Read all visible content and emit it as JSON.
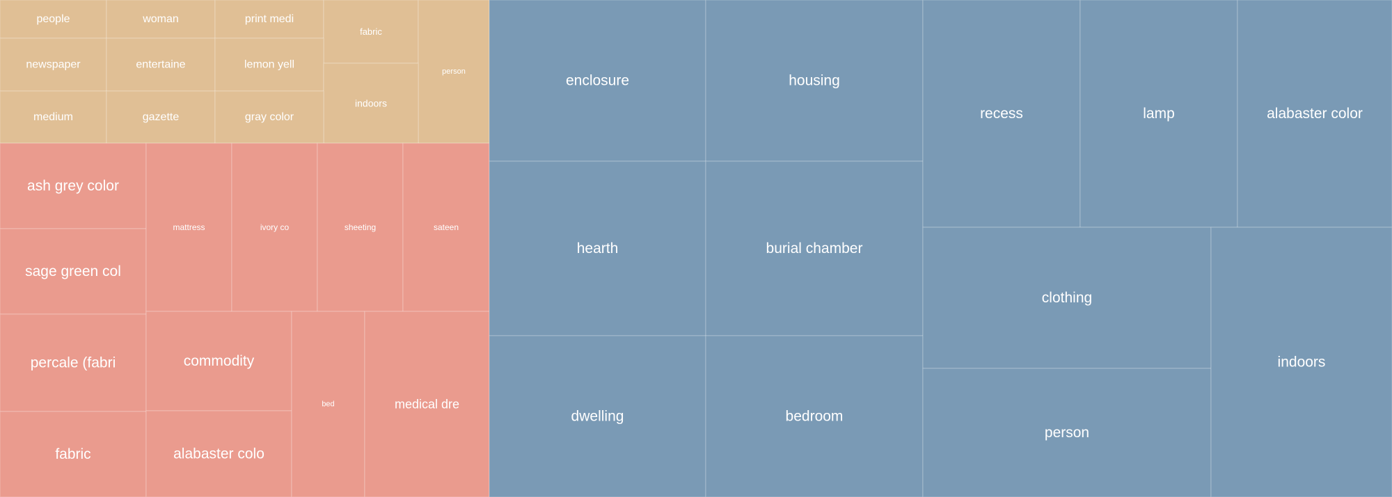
{
  "chart_data": {
    "type": "treemap",
    "groups": [
      {
        "color": "#e0bf95",
        "leaves": [
          {
            "label": "people"
          },
          {
            "label": "woman"
          },
          {
            "label": "print medi"
          },
          {
            "label": "fabric"
          },
          {
            "label": "person"
          },
          {
            "label": "newspaper"
          },
          {
            "label": "entertaine"
          },
          {
            "label": "lemon yell"
          },
          {
            "label": "indoors"
          },
          {
            "label": "medium"
          },
          {
            "label": "gazette"
          },
          {
            "label": "gray color"
          }
        ]
      },
      {
        "color": "#ea9b8e",
        "leaves": [
          {
            "label": "ash grey color"
          },
          {
            "label": "sage green col"
          },
          {
            "label": "percale (fabri"
          },
          {
            "label": "fabric"
          },
          {
            "label": "mattress"
          },
          {
            "label": "ivory co"
          },
          {
            "label": "sheeting"
          },
          {
            "label": "sateen"
          },
          {
            "label": "commodity"
          },
          {
            "label": "alabaster colo"
          },
          {
            "label": "bed"
          },
          {
            "label": "medical dre"
          }
        ]
      },
      {
        "color": "#7a9ab5",
        "leaves": [
          {
            "label": "enclosure"
          },
          {
            "label": "housing"
          },
          {
            "label": "hearth"
          },
          {
            "label": "burial chamber"
          },
          {
            "label": "dwelling"
          },
          {
            "label": "bedroom"
          },
          {
            "label": "recess"
          },
          {
            "label": "lamp"
          },
          {
            "label": "alabaster color"
          },
          {
            "label": "clothing"
          },
          {
            "label": "person"
          },
          {
            "label": "indoors"
          }
        ]
      }
    ]
  }
}
